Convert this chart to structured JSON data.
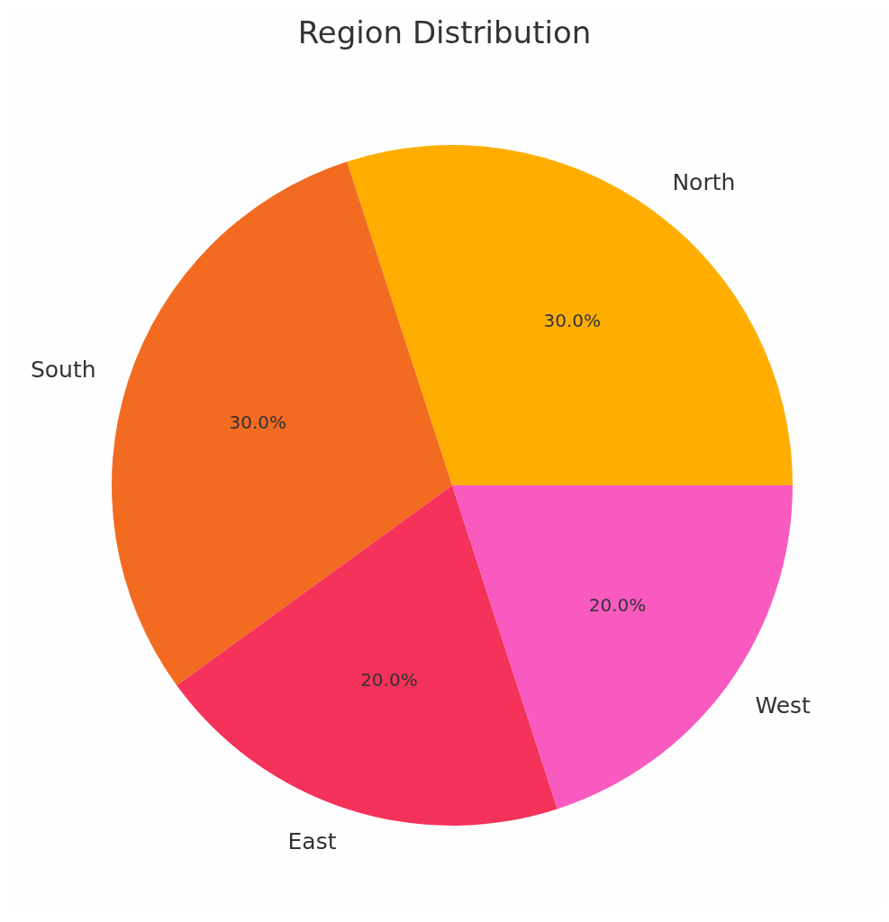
{
  "chart_data": {
    "type": "pie",
    "title": "Region Distribution",
    "categories": [
      "North",
      "South",
      "East",
      "West"
    ],
    "values": [
      30,
      30,
      20,
      20
    ],
    "colors": [
      "#ffae00",
      "#f26b21",
      "#f5325a",
      "#f95ac0"
    ],
    "value_labels": [
      "30.0%",
      "30.0%",
      "20.0%",
      "20.0%"
    ]
  }
}
